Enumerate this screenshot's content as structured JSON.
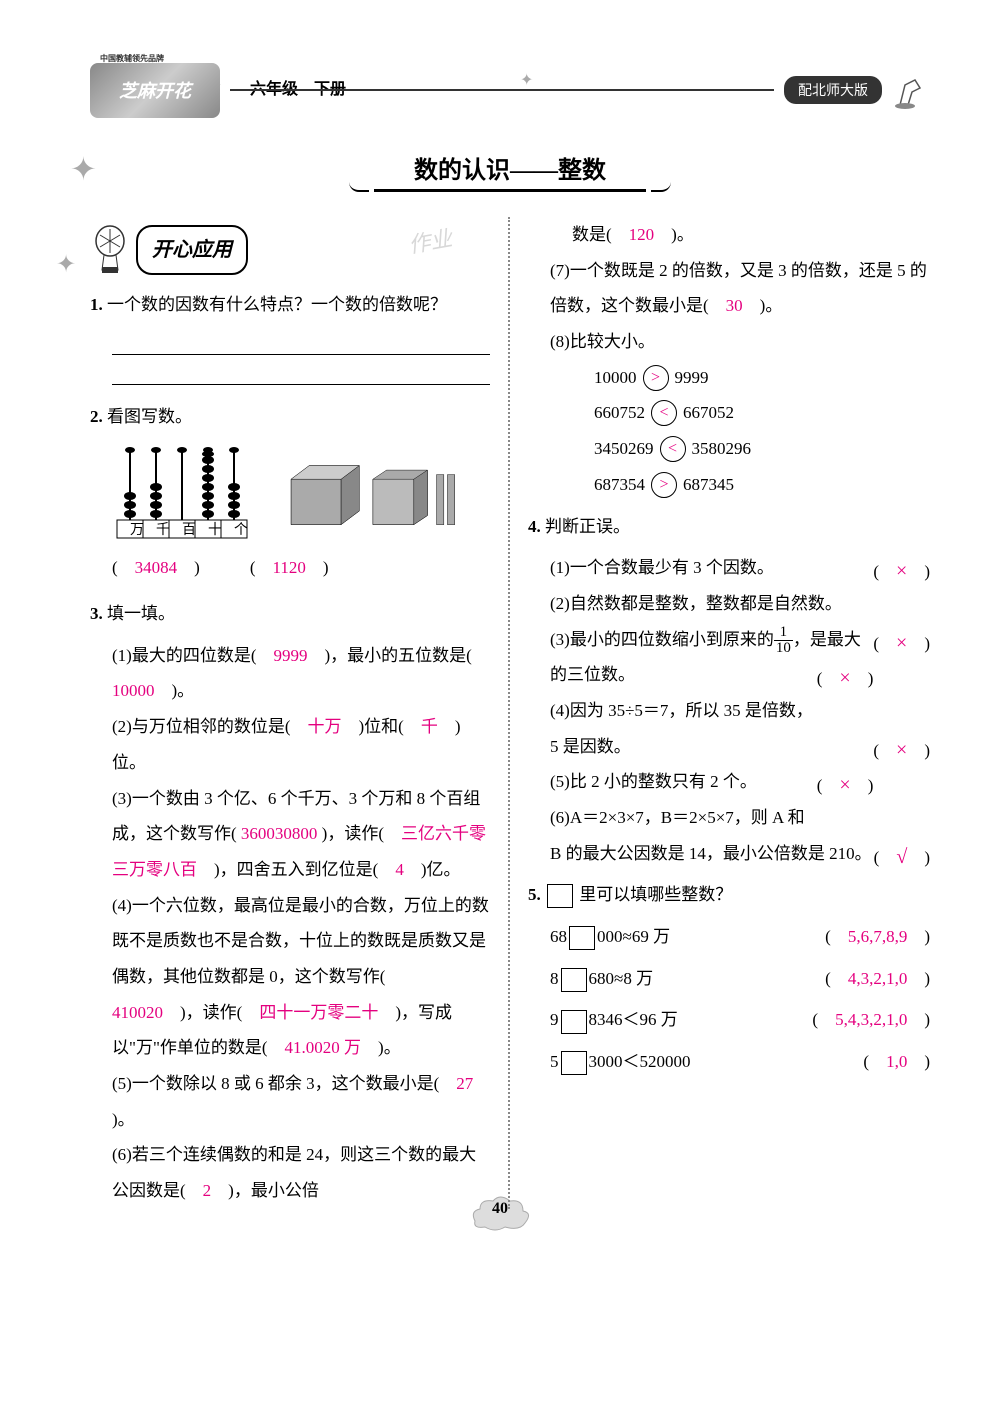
{
  "header": {
    "logo_text": "芝麻开花",
    "logo_sub": "中国教辅领先品牌",
    "grade": "六年级　下册",
    "version_badge": "配北师大版"
  },
  "title": "数的认识——整数",
  "section_title": "开心应用",
  "watermark": "作业",
  "q1": {
    "num": "1.",
    "text": "一个数的因数有什么特点？一个数的倍数呢？"
  },
  "q2": {
    "num": "2.",
    "text": "看图写数。",
    "labels": [
      "万",
      "千",
      "百",
      "十",
      "个"
    ],
    "ans1": "34084",
    "ans2": "1120"
  },
  "q3": {
    "num": "3.",
    "title": "填一填。",
    "items": [
      {
        "n": "(1)",
        "text_a": "最大的四位数是(",
        "a1": "9999",
        "text_b": ")，最小的五位数是(",
        "a2": "10000",
        "text_c": ")。"
      },
      {
        "n": "(2)",
        "text_a": "与万位相邻的数位是(",
        "a1": "十万",
        "text_b": ")位和(",
        "a2": "千",
        "text_c": ")位。"
      },
      {
        "n": "(3)",
        "text_a": "一个数由 3 个亿、6 个千万、3 个万和 8 个百组成，这个数写作(",
        "a1": "360030800",
        "text_b": ")，读作(",
        "a2": "三亿六千零三万零八百",
        "text_c": ")，四舍五入到亿位是(",
        "a3": "4",
        "text_d": ")亿。"
      },
      {
        "n": "(4)",
        "text_a": "一个六位数，最高位是最小的合数，万位上的数既不是质数也不是合数，十位上的数既是质数又是偶数，其他位数都是 0，这个数写作(",
        "a1": "410020",
        "text_b": ")，读作(",
        "a2": "四十一万零二十",
        "text_c": ")，写成以\"万\"作单位的数是(",
        "a3": "41.0020 万",
        "text_d": ")。"
      },
      {
        "n": "(5)",
        "text_a": "一个数除以 8 或 6 都余 3，这个数最小是(",
        "a1": "27",
        "text_b": ")。"
      },
      {
        "n": "(6)",
        "text_a": "若三个连续偶数的和是 24，则这三个数的最大公因数是(",
        "a1": "2",
        "text_b": ")，最小公倍"
      }
    ]
  },
  "right_continue": {
    "text_a": "数是(",
    "a1": "120",
    "text_b": ")。"
  },
  "q3_7": {
    "n": "(7)",
    "text_a": "一个数既是 2 的倍数，又是 3 的倍数，还是 5 的倍数，这个数最小是(",
    "a1": "30",
    "text_b": ")。"
  },
  "q3_8": {
    "n": "(8)",
    "title": "比较大小。",
    "rows": [
      {
        "l": "10000",
        "op": ">",
        "r": "9999"
      },
      {
        "l": "660752",
        "op": "<",
        "r": "667052"
      },
      {
        "l": "3450269",
        "op": "<",
        "r": "3580296"
      },
      {
        "l": "687354",
        "op": ">",
        "r": "687345"
      }
    ]
  },
  "q4": {
    "num": "4.",
    "title": "判断正误。",
    "items": [
      {
        "n": "(1)",
        "t": "一个合数最少有 3 个因数。",
        "mark": "×"
      },
      {
        "n": "(2)",
        "t": "自然数都是整数，整数都是自然数。",
        "mark": "×"
      },
      {
        "n": "(3)",
        "t_a": "最小的四位数缩小到原来的",
        "frac_n": "1",
        "frac_d": "10",
        "t_b": "，是最大的三位数。",
        "mark": "×"
      },
      {
        "n": "(4)",
        "t": "因为 35÷5＝7，所以 35 是倍数，5 是因数。",
        "mark": "×"
      },
      {
        "n": "(5)",
        "t": "比 2 小的整数只有 2 个。",
        "mark": "×"
      },
      {
        "n": "(6)",
        "t": "A＝2×3×7，B＝2×5×7，则 A 和 B 的最大公因数是 14，最小公倍数是 210。",
        "mark": "√"
      }
    ]
  },
  "q5": {
    "num": "5.",
    "title": "里可以填哪些整数？",
    "rows": [
      {
        "pre": "68",
        "post": "000≈69 万",
        "ans": "5,6,7,8,9"
      },
      {
        "pre": "8",
        "post": "680≈8 万",
        "ans": "4,3,2,1,0"
      },
      {
        "pre": "9",
        "post": "8346＜96 万",
        "ans": "5,4,3,2,1,0"
      },
      {
        "pre": "5",
        "post": "3000＜520000",
        "ans": "1,0"
      }
    ]
  },
  "page_num": "40",
  "colors": {
    "answer": "#e4007f",
    "text": "#000000"
  }
}
